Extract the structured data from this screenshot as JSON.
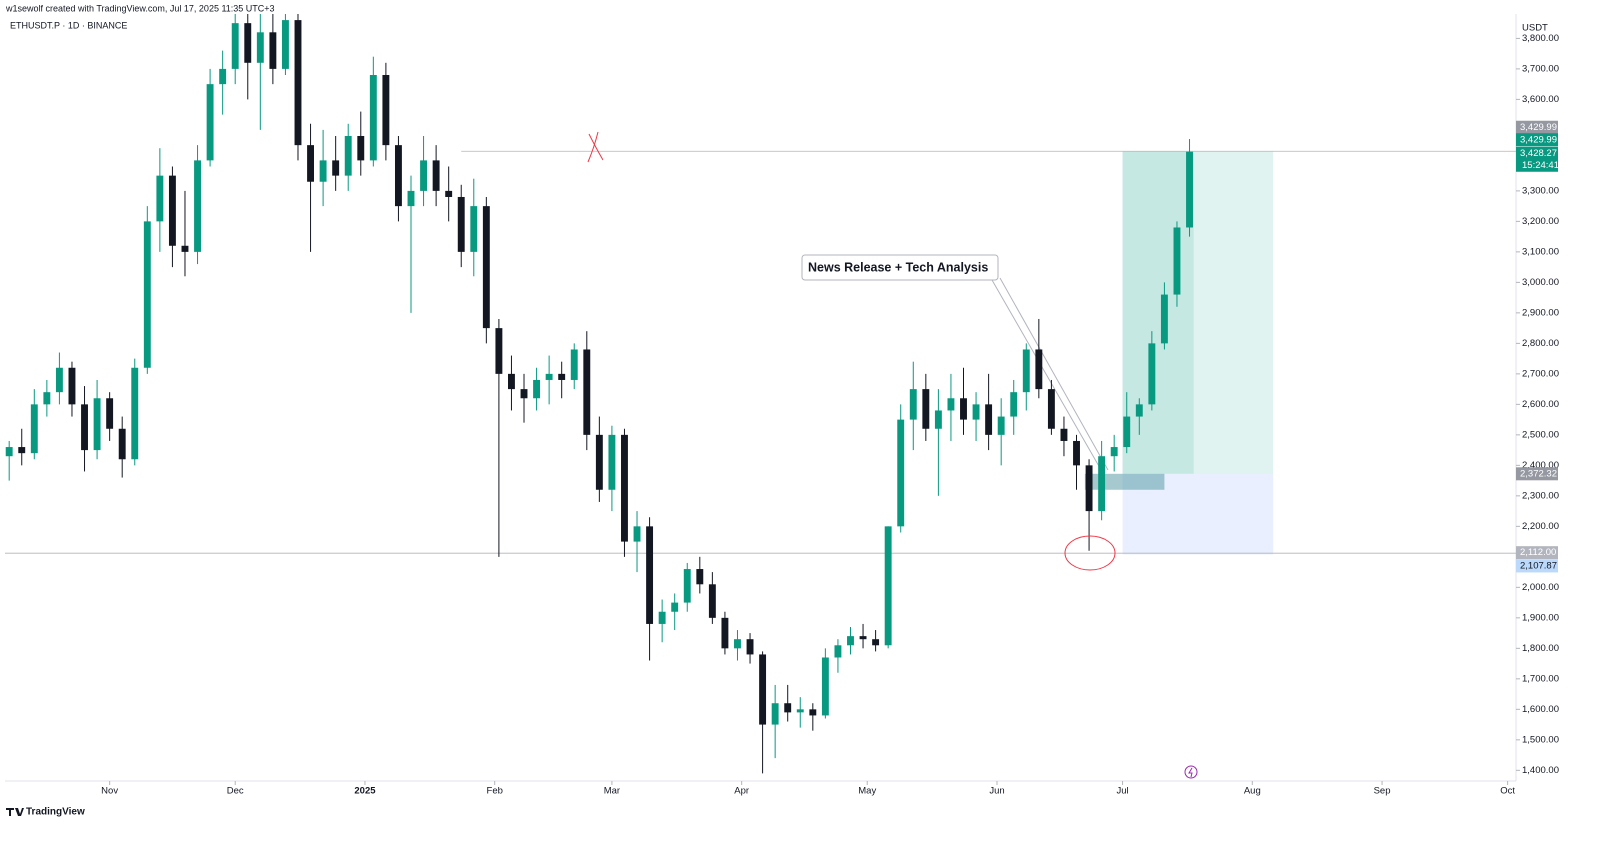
{
  "chart_data": {
    "type": "candlestick",
    "credit": "w1sewolf created with TradingView.com, Jul 17, 2025 11:35 UTC+3",
    "symbol": "ETHUSDT.P · 1D · BINANCE",
    "y_unit": "USDT",
    "brand": "TradingView",
    "annotation": "News Release + Tech Analysis",
    "up_color": "#089981",
    "down_color": "#131722",
    "xlim": [
      0,
      361
    ],
    "ylim": [
      1365,
      3880
    ],
    "xticks": [
      {
        "value": 25,
        "label": "Nov"
      },
      {
        "value": 55,
        "label": "Dec"
      },
      {
        "value": 86,
        "label": "2025"
      },
      {
        "value": 117,
        "label": "Feb"
      },
      {
        "value": 145,
        "label": "Mar"
      },
      {
        "value": 176,
        "label": "Apr"
      },
      {
        "value": 206,
        "label": "May"
      },
      {
        "value": 237,
        "label": "Jun"
      },
      {
        "value": 267,
        "label": "Jul"
      },
      {
        "value": 298,
        "label": "Aug"
      },
      {
        "value": 329,
        "label": "Sep"
      },
      {
        "value": 359,
        "label": "Oct"
      }
    ],
    "yticks": [
      {
        "value": 1400,
        "label": "1,400.00"
      },
      {
        "value": 1500,
        "label": "1,500.00"
      },
      {
        "value": 1600,
        "label": "1,600.00"
      },
      {
        "value": 1700,
        "label": "1,700.00"
      },
      {
        "value": 1800,
        "label": "1,800.00"
      },
      {
        "value": 1900,
        "label": "1,900.00"
      },
      {
        "value": 2000,
        "label": "2,000.00"
      },
      {
        "value": 2200,
        "label": "2,200.00"
      },
      {
        "value": 2300,
        "label": "2,300.00"
      },
      {
        "value": 2400,
        "label": "2,400.00"
      },
      {
        "value": 2500,
        "label": "2,500.00"
      },
      {
        "value": 2600,
        "label": "2,600.00"
      },
      {
        "value": 2700,
        "label": "2,700.00"
      },
      {
        "value": 2800,
        "label": "2,800.00"
      },
      {
        "value": 2900,
        "label": "2,900.00"
      },
      {
        "value": 3000,
        "label": "3,000.00"
      },
      {
        "value": 3100,
        "label": "3,100.00"
      },
      {
        "value": 3200,
        "label": "3,200.00"
      },
      {
        "value": 3300,
        "label": "3,300.00"
      },
      {
        "value": 3600,
        "label": "3,600.00"
      },
      {
        "value": 3700,
        "label": "3,700.00"
      },
      {
        "value": 3800,
        "label": "3,800.00"
      }
    ],
    "x": [
      1,
      4,
      7,
      10,
      13,
      16,
      19,
      22,
      25,
      28,
      31,
      34,
      37,
      40,
      43,
      46,
      49,
      52,
      55,
      58,
      61,
      64,
      67,
      70,
      73,
      76,
      79,
      82,
      85,
      88,
      91,
      94,
      97,
      100,
      103,
      106,
      109,
      112,
      115,
      118,
      121,
      124,
      127,
      130,
      133,
      136,
      139,
      142,
      145,
      148,
      151,
      154,
      157,
      160,
      163,
      166,
      169,
      172,
      175,
      178,
      181,
      184,
      187,
      190,
      193,
      196,
      199,
      202,
      205,
      208,
      211,
      214,
      217,
      220,
      223,
      226,
      229,
      232,
      235,
      238,
      241,
      244,
      247,
      250,
      253,
      256,
      259,
      262,
      265,
      268,
      271,
      274,
      277,
      280,
      283
    ],
    "open": [
      2430,
      2460,
      2440,
      2600,
      2640,
      2720,
      2600,
      2450,
      2620,
      2520,
      2420,
      2720,
      3200,
      3350,
      3120,
      3100,
      3400,
      3650,
      3700,
      3850,
      3720,
      3820,
      3700,
      3860,
      3450,
      3330,
      3400,
      3350,
      3480,
      3400,
      3680,
      3450,
      3250,
      3300,
      3400,
      3300,
      3280,
      3100,
      3250,
      2850,
      2700,
      2650,
      2620,
      2680,
      2700,
      2680,
      2780,
      2500,
      2320,
      2500,
      2150,
      2200,
      1880,
      1920,
      1950,
      2060,
      2010,
      1900,
      1800,
      1830,
      1780,
      1550,
      1620,
      1590,
      1600,
      1580,
      1770,
      1810,
      1840,
      1830,
      1810,
      2200,
      2550,
      2650,
      2520,
      2580,
      2620,
      2550,
      2600,
      2500,
      2560,
      2640,
      2780,
      2650,
      2520,
      2480,
      2400,
      2250,
      2430,
      2460,
      2560,
      2600,
      2800,
      2960,
      3180
    ],
    "high": [
      2480,
      2520,
      2650,
      2680,
      2770,
      2740,
      2660,
      2680,
      2640,
      2560,
      2750,
      3250,
      3440,
      3380,
      3300,
      3450,
      3700,
      3760,
      3880,
      3880,
      3880,
      3880,
      3880,
      3880,
      3520,
      3500,
      3480,
      3520,
      3560,
      3740,
      3720,
      3480,
      3350,
      3480,
      3450,
      3380,
      3320,
      3340,
      3280,
      2880,
      2760,
      2700,
      2720,
      2760,
      2740,
      2800,
      2840,
      2560,
      2530,
      2520,
      2250,
      2230,
      1960,
      1980,
      2080,
      2100,
      2050,
      1920,
      1860,
      1850,
      1790,
      1680,
      1680,
      1640,
      1620,
      1800,
      1830,
      1870,
      1880,
      1860,
      2200,
      2600,
      2740,
      2700,
      2650,
      2700,
      2720,
      2640,
      2700,
      2620,
      2680,
      2800,
      2880,
      2680,
      2560,
      2500,
      2420,
      2480,
      2500,
      2640,
      2620,
      2840,
      3000,
      3200,
      3470
    ],
    "low": [
      2350,
      2400,
      2420,
      2560,
      2600,
      2560,
      2380,
      2420,
      2480,
      2360,
      2400,
      2700,
      3100,
      3050,
      3020,
      3060,
      3380,
      3550,
      3650,
      3600,
      3500,
      3650,
      3680,
      3400,
      3100,
      3250,
      3300,
      3300,
      3350,
      3380,
      3400,
      3200,
      2900,
      3250,
      3250,
      3200,
      3050,
      3020,
      2800,
      2100,
      2580,
      2540,
      2580,
      2600,
      2620,
      2650,
      2450,
      2280,
      2250,
      2100,
      2050,
      1760,
      1820,
      1860,
      1920,
      1980,
      1880,
      1780,
      1760,
      1750,
      1390,
      1440,
      1560,
      1540,
      1530,
      1570,
      1720,
      1780,
      1800,
      1790,
      1800,
      2180,
      2450,
      2480,
      2300,
      2480,
      2500,
      2480,
      2450,
      2400,
      2500,
      2580,
      2620,
      2500,
      2430,
      2320,
      2120,
      2220,
      2380,
      2440,
      2500,
      2580,
      2780,
      2920,
      3150
    ],
    "close": [
      2460,
      2440,
      2600,
      2640,
      2720,
      2600,
      2450,
      2620,
      2520,
      2420,
      2720,
      3200,
      3350,
      3120,
      3100,
      3400,
      3650,
      3700,
      3850,
      3720,
      3820,
      3700,
      3860,
      3450,
      3330,
      3400,
      3350,
      3480,
      3400,
      3680,
      3450,
      3250,
      3300,
      3400,
      3300,
      3280,
      3100,
      3250,
      2850,
      2700,
      2650,
      2620,
      2680,
      2700,
      2680,
      2780,
      2500,
      2320,
      2500,
      2150,
      2200,
      1880,
      1920,
      1950,
      2060,
      2010,
      1900,
      1800,
      1830,
      1780,
      1550,
      1620,
      1590,
      1600,
      1580,
      1770,
      1810,
      1840,
      1830,
      1810,
      2200,
      2550,
      2650,
      2520,
      2580,
      2620,
      2550,
      2600,
      2500,
      2560,
      2640,
      2780,
      2650,
      2520,
      2480,
      2400,
      2250,
      2430,
      2460,
      2560,
      2600,
      2800,
      2960,
      3180,
      3428.27
    ],
    "resistance": {
      "value": 3429.99,
      "label": "3,429.99",
      "start": 109
    },
    "support": {
      "value": 2112,
      "label": "2,112.00"
    },
    "position": {
      "start": 267,
      "end": 303,
      "now": 284,
      "target": {
        "value": 3429.99,
        "label": "3,429.99"
      },
      "entry": {
        "value": 2372.32,
        "label": "2,372.32"
      },
      "stop": {
        "value": 2107.87,
        "label": "2,107.87"
      }
    },
    "order_block": {
      "start": 258,
      "end": 277,
      "top": 2372.32,
      "bottom": 2320
    },
    "last_price_label": "3,428.27",
    "countdown": "15:24:41"
  }
}
